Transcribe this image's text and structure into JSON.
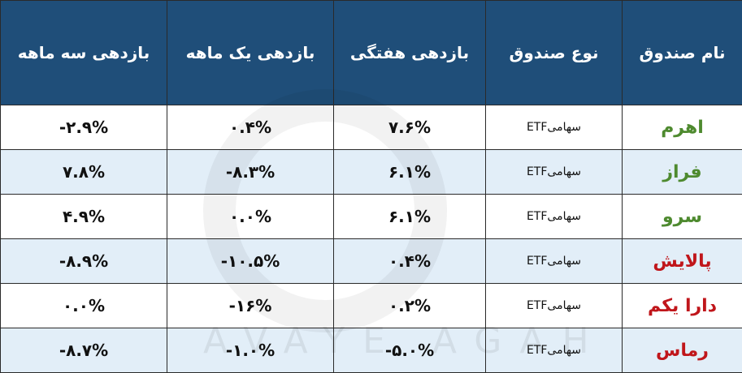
{
  "table": {
    "header": [
      "نام صندوق",
      "نوع صندوق",
      "بازدهی هفتگی",
      "بازدهی یک ماهه",
      "بازدهی سه ماهه"
    ],
    "rows": [
      [
        "اهرم",
        "سهامیETF",
        "۷.۶%",
        "۰.۴%",
        "-۲.۹%"
      ],
      [
        "فراز",
        "سهامیETF",
        "۶.۱%",
        "-۸.۳%",
        "۷.۸%"
      ],
      [
        "سرو",
        "سهامیETF",
        "۶.۱%",
        "۰.۰%",
        "۴.۹%"
      ],
      [
        "پالایش",
        "سهامیETF",
        "۰.۴%",
        "-۱۰.۵%",
        "-۸.۹%"
      ],
      [
        "دارا یکم",
        "سهامیETF",
        "۰.۲%",
        "-۱۶%",
        "۰.۰%"
      ],
      [
        "رماس",
        "سهامیETF",
        "-۵.۰%",
        "-۱.۰%",
        "-۸.۷%"
      ]
    ],
    "name_colors": [
      "#4e8a2f",
      "#4e8a2f",
      "#4e8a2f",
      "#c0161b",
      "#c0161b",
      "#c0161b"
    ],
    "watermark": "AVAYE AGAH"
  }
}
